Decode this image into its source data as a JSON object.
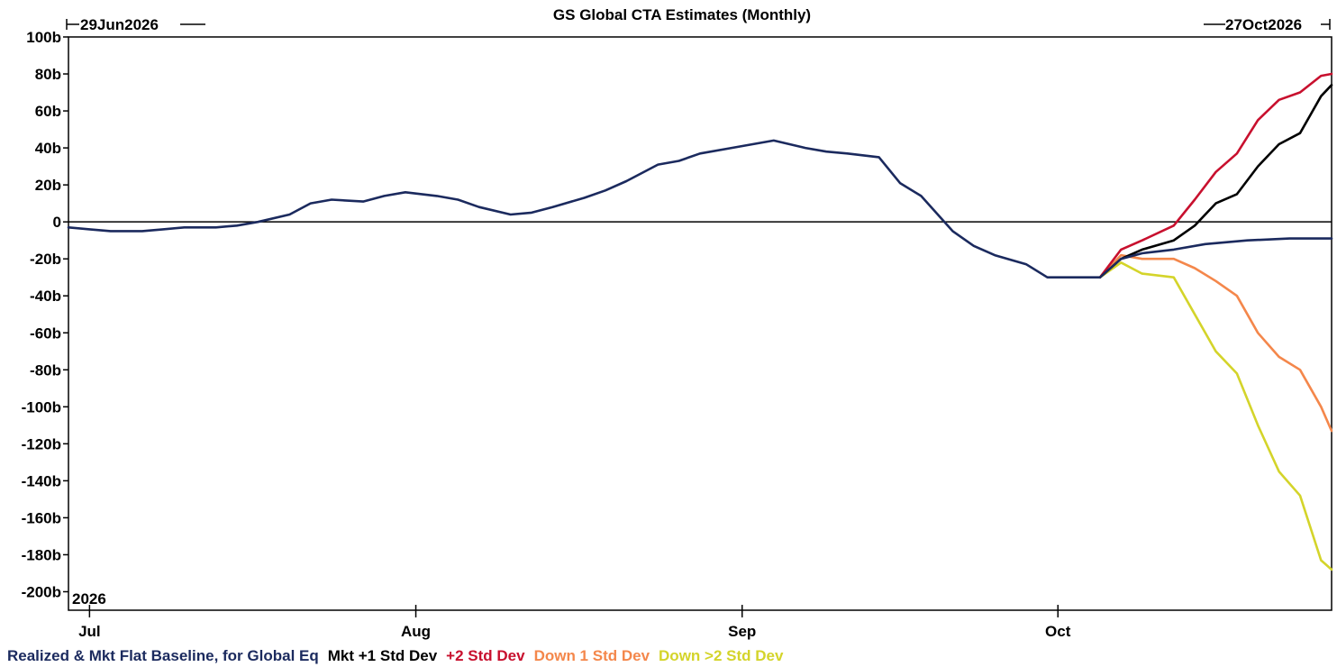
{
  "chart_data": {
    "type": "line",
    "title": "GS Global CTA Estimates (Monthly)",
    "date_range": {
      "start": "29Jun2026",
      "end": "27Oct2026"
    },
    "year_label": "2026",
    "xlabel": "",
    "ylabel": "",
    "x_ticks": [
      {
        "label": "Jul",
        "date": "2026-07-01"
      },
      {
        "label": "Aug",
        "date": "2026-08-01"
      },
      {
        "label": "Sep",
        "date": "2026-09-01"
      },
      {
        "label": "Oct",
        "date": "2026-10-01"
      }
    ],
    "y_ticks": [
      {
        "label": "100b",
        "value": 100
      },
      {
        "label": "80b",
        "value": 80
      },
      {
        "label": "60b",
        "value": 60
      },
      {
        "label": "40b",
        "value": 40
      },
      {
        "label": "20b",
        "value": 20
      },
      {
        "label": "0",
        "value": 0
      },
      {
        "label": "-20b",
        "value": -20
      },
      {
        "label": "-40b",
        "value": -40
      },
      {
        "label": "-60b",
        "value": -60
      },
      {
        "label": "-80b",
        "value": -80
      },
      {
        "label": "-100b",
        "value": -100
      },
      {
        "label": "-120b",
        "value": -120
      },
      {
        "label": "-140b",
        "value": -140
      },
      {
        "label": "-160b",
        "value": -160
      },
      {
        "label": "-180b",
        "value": -180
      },
      {
        "label": "-200b",
        "value": -200
      }
    ],
    "ylim": [
      -210,
      100
    ],
    "xlim": [
      "2026-06-29",
      "2026-10-27"
    ],
    "grid": false,
    "zero_line": true,
    "legend_position": "bottom",
    "series": [
      {
        "name": "Realized & Mkt Flat Baseline, for Global Eq",
        "color": "#1b2a5e",
        "points": [
          [
            "2026-06-29",
            -3
          ],
          [
            "2026-07-01",
            -4
          ],
          [
            "2026-07-03",
            -5
          ],
          [
            "2026-07-06",
            -5
          ],
          [
            "2026-07-08",
            -4
          ],
          [
            "2026-07-10",
            -3
          ],
          [
            "2026-07-13",
            -3
          ],
          [
            "2026-07-15",
            -2
          ],
          [
            "2026-07-17",
            0
          ],
          [
            "2026-07-20",
            4
          ],
          [
            "2026-07-22",
            10
          ],
          [
            "2026-07-24",
            12
          ],
          [
            "2026-07-27",
            11
          ],
          [
            "2026-07-29",
            14
          ],
          [
            "2026-07-31",
            16
          ],
          [
            "2026-08-03",
            14
          ],
          [
            "2026-08-05",
            12
          ],
          [
            "2026-08-07",
            8
          ],
          [
            "2026-08-10",
            4
          ],
          [
            "2026-08-12",
            5
          ],
          [
            "2026-08-14",
            8
          ],
          [
            "2026-08-17",
            13
          ],
          [
            "2026-08-19",
            17
          ],
          [
            "2026-08-21",
            22
          ],
          [
            "2026-08-24",
            31
          ],
          [
            "2026-08-26",
            33
          ],
          [
            "2026-08-28",
            37
          ],
          [
            "2026-08-31",
            40
          ],
          [
            "2026-09-02",
            42
          ],
          [
            "2026-09-04",
            44
          ],
          [
            "2026-09-07",
            40
          ],
          [
            "2026-09-09",
            38
          ],
          [
            "2026-09-11",
            37
          ],
          [
            "2026-09-14",
            35
          ],
          [
            "2026-09-16",
            21
          ],
          [
            "2026-09-18",
            14
          ],
          [
            "2026-09-21",
            -5
          ],
          [
            "2026-09-23",
            -13
          ],
          [
            "2026-09-25",
            -18
          ],
          [
            "2026-09-28",
            -23
          ],
          [
            "2026-09-30",
            -30
          ],
          [
            "2026-10-02",
            -30
          ],
          [
            "2026-10-05",
            -30
          ],
          [
            "2026-10-07",
            -20
          ],
          [
            "2026-10-09",
            -17
          ],
          [
            "2026-10-12",
            -15
          ],
          [
            "2026-10-15",
            -12
          ],
          [
            "2026-10-19",
            -10
          ],
          [
            "2026-10-23",
            -9
          ],
          [
            "2026-10-27",
            -9
          ]
        ]
      },
      {
        "name": "Mkt +1 Std Dev",
        "color": "#000000",
        "points": [
          [
            "2026-10-05",
            -30
          ],
          [
            "2026-10-07",
            -20
          ],
          [
            "2026-10-09",
            -15
          ],
          [
            "2026-10-12",
            -10
          ],
          [
            "2026-10-14",
            -2
          ],
          [
            "2026-10-16",
            10
          ],
          [
            "2026-10-18",
            15
          ],
          [
            "2026-10-20",
            30
          ],
          [
            "2026-10-22",
            42
          ],
          [
            "2026-10-24",
            48
          ],
          [
            "2026-10-26",
            68
          ],
          [
            "2026-10-27",
            74
          ]
        ]
      },
      {
        "name": "+2 Std Dev",
        "color": "#c8102e",
        "points": [
          [
            "2026-10-05",
            -30
          ],
          [
            "2026-10-07",
            -15
          ],
          [
            "2026-10-09",
            -10
          ],
          [
            "2026-10-12",
            -2
          ],
          [
            "2026-10-14",
            12
          ],
          [
            "2026-10-16",
            27
          ],
          [
            "2026-10-18",
            37
          ],
          [
            "2026-10-20",
            55
          ],
          [
            "2026-10-22",
            66
          ],
          [
            "2026-10-24",
            70
          ],
          [
            "2026-10-26",
            79
          ],
          [
            "2026-10-27",
            80
          ]
        ]
      },
      {
        "name": "Down 1 Std Dev",
        "color": "#f4874b",
        "points": [
          [
            "2026-10-05",
            -30
          ],
          [
            "2026-10-07",
            -18
          ],
          [
            "2026-10-09",
            -20
          ],
          [
            "2026-10-12",
            -20
          ],
          [
            "2026-10-14",
            -25
          ],
          [
            "2026-10-16",
            -32
          ],
          [
            "2026-10-18",
            -40
          ],
          [
            "2026-10-20",
            -60
          ],
          [
            "2026-10-22",
            -73
          ],
          [
            "2026-10-24",
            -80
          ],
          [
            "2026-10-26",
            -100
          ],
          [
            "2026-10-27",
            -113
          ]
        ]
      },
      {
        "name": "Down >2 Std Dev",
        "color": "#d4d42a",
        "points": [
          [
            "2026-10-05",
            -30
          ],
          [
            "2026-10-07",
            -22
          ],
          [
            "2026-10-09",
            -28
          ],
          [
            "2026-10-12",
            -30
          ],
          [
            "2026-10-14",
            -50
          ],
          [
            "2026-10-16",
            -70
          ],
          [
            "2026-10-18",
            -82
          ],
          [
            "2026-10-20",
            -110
          ],
          [
            "2026-10-22",
            -135
          ],
          [
            "2026-10-24",
            -148
          ],
          [
            "2026-10-26",
            -183
          ],
          [
            "2026-10-27",
            -188
          ]
        ]
      }
    ]
  }
}
